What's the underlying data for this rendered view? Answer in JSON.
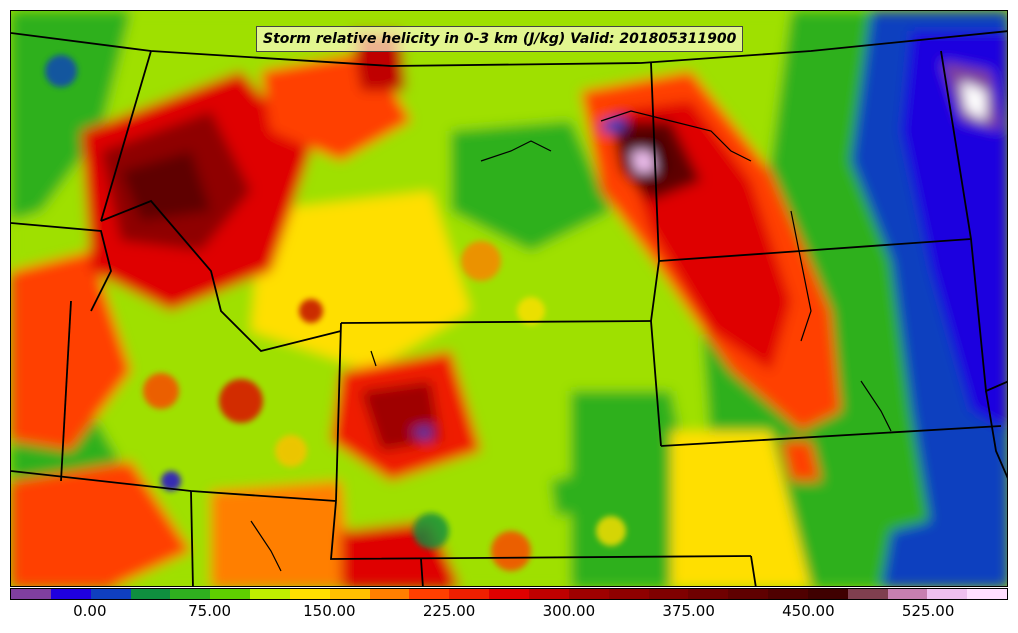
{
  "title": "Storm relative helicity in 0-3 km (J/kg) Valid: 201805311900",
  "colorbar": {
    "min": -50,
    "max": 575,
    "step": 25,
    "tick_labels": [
      "0.00",
      "75.00",
      "150.00",
      "225.00",
      "300.00",
      "375.00",
      "450.00",
      "525.00"
    ],
    "tick_values": [
      0,
      75,
      150,
      225,
      300,
      375,
      450,
      525
    ],
    "colors": [
      "#7f3f9f",
      "#1f00df",
      "#0f3fbf",
      "#0f8f3f",
      "#2fb01f",
      "#5fd000",
      "#bfef00",
      "#ffdf00",
      "#ffbf00",
      "#ff7f00",
      "#ff3f00",
      "#ef1f00",
      "#df0000",
      "#bf0000",
      "#9f0000",
      "#8f0000",
      "#7f0000",
      "#6f0000",
      "#5f0000",
      "#4f0000",
      "#3f0000",
      "#7f3f4f",
      "#c77fb0",
      "#efbfef",
      "#ffdfff"
    ]
  },
  "map": {
    "region": "Rocky Mountains / Northern and Central Plains",
    "background_field_color": "#9fe000",
    "state_border_color": "#000000"
  }
}
